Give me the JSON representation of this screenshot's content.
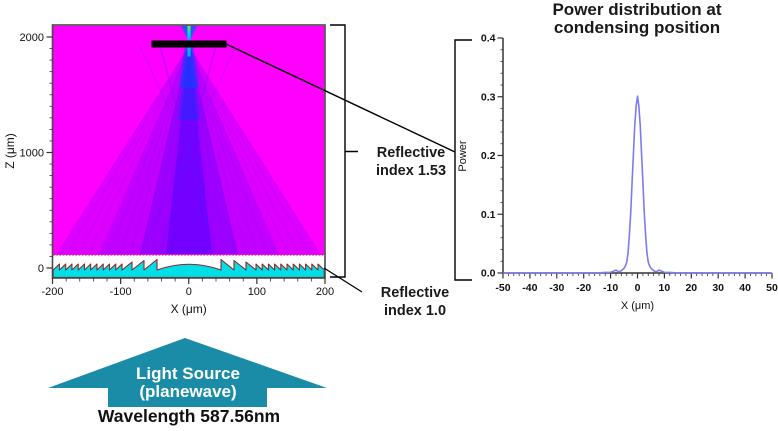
{
  "colors": {
    "field_background": "#FF00FF",
    "beam_blue": "#2B18F0",
    "focus_green": "#7FE842",
    "lens_fill": "#00DFE8",
    "lens_outline": "#8B2A2A",
    "condensing_bar": "#000000",
    "curve": "#7B7BF2",
    "arrow_teal": "#1B8CA8",
    "annotation_line": "#000000",
    "text_dark": "#1A1A1A"
  },
  "chart_data": [
    {
      "type": "heatmap",
      "title": "",
      "xlabel": "X (μm)",
      "ylabel": "Z (μm)",
      "xlim": [
        -200,
        200
      ],
      "ylim": [
        0,
        2000
      ],
      "x_ticks": [
        -200,
        -100,
        0,
        100,
        200
      ],
      "y_ticks": [
        0,
        1000,
        2000
      ],
      "colormap_note": "magenta plane-wave field with blue cone converging from Fresnel lens to focus",
      "focus": {
        "x": 0,
        "z": 1970
      },
      "condensing_bar": {
        "x_from": -55,
        "x_to": 55,
        "z": 1970
      },
      "lens": {
        "kind": "fresnel",
        "dome_half_width_um": 50,
        "small_teeth_per_side": 11,
        "big_teeth_per_side": 3
      }
    },
    {
      "type": "line",
      "title": "Power distribution at condensing position",
      "xlabel": "X (μm)",
      "ylabel": "Power",
      "xlim": [
        -50,
        50
      ],
      "ylim": [
        0,
        0.4
      ],
      "x_ticks": [
        -50,
        -40,
        -30,
        -20,
        -10,
        0,
        10,
        20,
        30,
        40,
        50
      ],
      "y_ticks": [
        0.0,
        0.1,
        0.2,
        0.3,
        0.4
      ],
      "grid": false,
      "legend": "none",
      "peak": {
        "x": 0,
        "power": 0.3
      },
      "series": [
        {
          "name": "power",
          "color": "#7B7BF2",
          "points": [
            [
              -50,
              0
            ],
            [
              -40,
              0
            ],
            [
              -30,
              0
            ],
            [
              -20,
              0
            ],
            [
              -15,
              0
            ],
            [
              -12,
              0.001
            ],
            [
              -10,
              0.001
            ],
            [
              -9,
              0.003
            ],
            [
              -8,
              0.005
            ],
            [
              -7,
              0.002
            ],
            [
              -6,
              0.004
            ],
            [
              -5,
              0.008
            ],
            [
              -4.5,
              0.012
            ],
            [
              -4,
              0.018
            ],
            [
              -3.5,
              0.035
            ],
            [
              -3,
              0.065
            ],
            [
              -2.5,
              0.105
            ],
            [
              -2,
              0.155
            ],
            [
              -1.5,
              0.205
            ],
            [
              -1,
              0.252
            ],
            [
              -0.5,
              0.285
            ],
            [
              0,
              0.301
            ],
            [
              0.5,
              0.285
            ],
            [
              1,
              0.252
            ],
            [
              1.5,
              0.205
            ],
            [
              2,
              0.155
            ],
            [
              2.5,
              0.105
            ],
            [
              3,
              0.065
            ],
            [
              3.5,
              0.035
            ],
            [
              4,
              0.018
            ],
            [
              4.5,
              0.012
            ],
            [
              5,
              0.008
            ],
            [
              6,
              0.004
            ],
            [
              7,
              0.002
            ],
            [
              8,
              0.005
            ],
            [
              9,
              0.003
            ],
            [
              10,
              0.001
            ],
            [
              12,
              0.001
            ],
            [
              15,
              0
            ],
            [
              20,
              0
            ],
            [
              30,
              0
            ],
            [
              40,
              0
            ],
            [
              50,
              0
            ]
          ]
        }
      ]
    }
  ],
  "left_plot": {
    "ylabel": "Z (μm)",
    "xlabel": "X (μm)"
  },
  "right_plot_display": {
    "title_line1": "Power distribution at",
    "title_line2": "condensing position"
  },
  "annotations": {
    "reflective_upper": {
      "line1": "Reflective",
      "line2": "index 1.53"
    },
    "reflective_lower": {
      "line1": "Reflective",
      "line2": "index 1.0"
    }
  },
  "light_source": {
    "label_line1": "Light Source",
    "label_line2": "(planewave)",
    "wavelength": "Wavelength 587.56nm",
    "direction": "up"
  }
}
